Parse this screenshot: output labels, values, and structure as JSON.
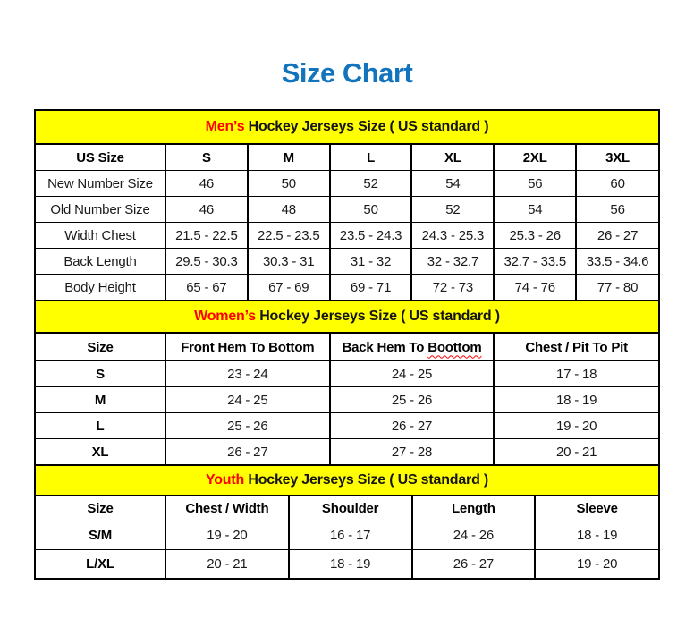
{
  "page": {
    "title": "Size Chart"
  },
  "colors": {
    "title_blue": "#1274BC",
    "accent_red": "#FF0000",
    "band_yellow": "#FFFF00",
    "border": "#000000",
    "text": "#1A1A1A",
    "background": "#FFFFFF"
  },
  "mens": {
    "band": {
      "highlight": "Men’s",
      "rest": "Hockey Jerseys Size ( US standard )"
    },
    "columns": [
      "US Size",
      "S",
      "M",
      "L",
      "XL",
      "2XL",
      "3XL"
    ],
    "rows": [
      {
        "label": "New Number Size",
        "values": [
          "46",
          "50",
          "52",
          "54",
          "56",
          "60"
        ]
      },
      {
        "label": "Old Number Size",
        "values": [
          "46",
          "48",
          "50",
          "52",
          "54",
          "56"
        ]
      },
      {
        "label": "Width Chest",
        "values": [
          "21.5 - 22.5",
          "22.5 - 23.5",
          "23.5 - 24.3",
          "24.3 - 25.3",
          "25.3 - 26",
          "26 - 27"
        ]
      },
      {
        "label": "Back Length",
        "values": [
          "29.5 - 30.3",
          "30.3 - 31",
          "31 - 32",
          "32 - 32.7",
          "32.7 - 33.5",
          "33.5 - 34.6"
        ]
      },
      {
        "label": "Body Height",
        "values": [
          "65 - 67",
          "67 - 69",
          "69 - 71",
          "72 - 73",
          "74 - 76",
          "77 - 80"
        ]
      }
    ]
  },
  "womens": {
    "band": {
      "highlight": "Women’s",
      "rest": "Hockey Jerseys Size ( US standard )"
    },
    "columns": {
      "size": "Size",
      "front_hem": "Front Hem To Bottom",
      "back_hem_prefix": "Back Hem To",
      "back_hem_misspelled": "Boottom",
      "chest": "Chest / Pit To Pit"
    },
    "rows": [
      {
        "label": "S",
        "values": [
          "23 - 24",
          "24 - 25",
          "17 - 18"
        ]
      },
      {
        "label": "M",
        "values": [
          "24 - 25",
          "25 - 26",
          "18 - 19"
        ]
      },
      {
        "label": "L",
        "values": [
          "25 - 26",
          "26 - 27",
          "19 - 20"
        ]
      },
      {
        "label": "XL",
        "values": [
          "26 - 27",
          "27 - 28",
          "20 - 21"
        ]
      }
    ]
  },
  "youth": {
    "band": {
      "highlight": "Youth",
      "rest": "Hockey Jerseys Size ( US standard )"
    },
    "columns": [
      "Size",
      "Chest / Width",
      "Shoulder",
      "Length",
      "Sleeve"
    ],
    "rows": [
      {
        "label": "S/M",
        "values": [
          "19 - 20",
          "16 - 17",
          "24 - 26",
          "18 - 19"
        ]
      },
      {
        "label": "L/XL",
        "values": [
          "20 - 21",
          "18 - 19",
          "26 - 27",
          "19 - 20"
        ]
      }
    ]
  }
}
